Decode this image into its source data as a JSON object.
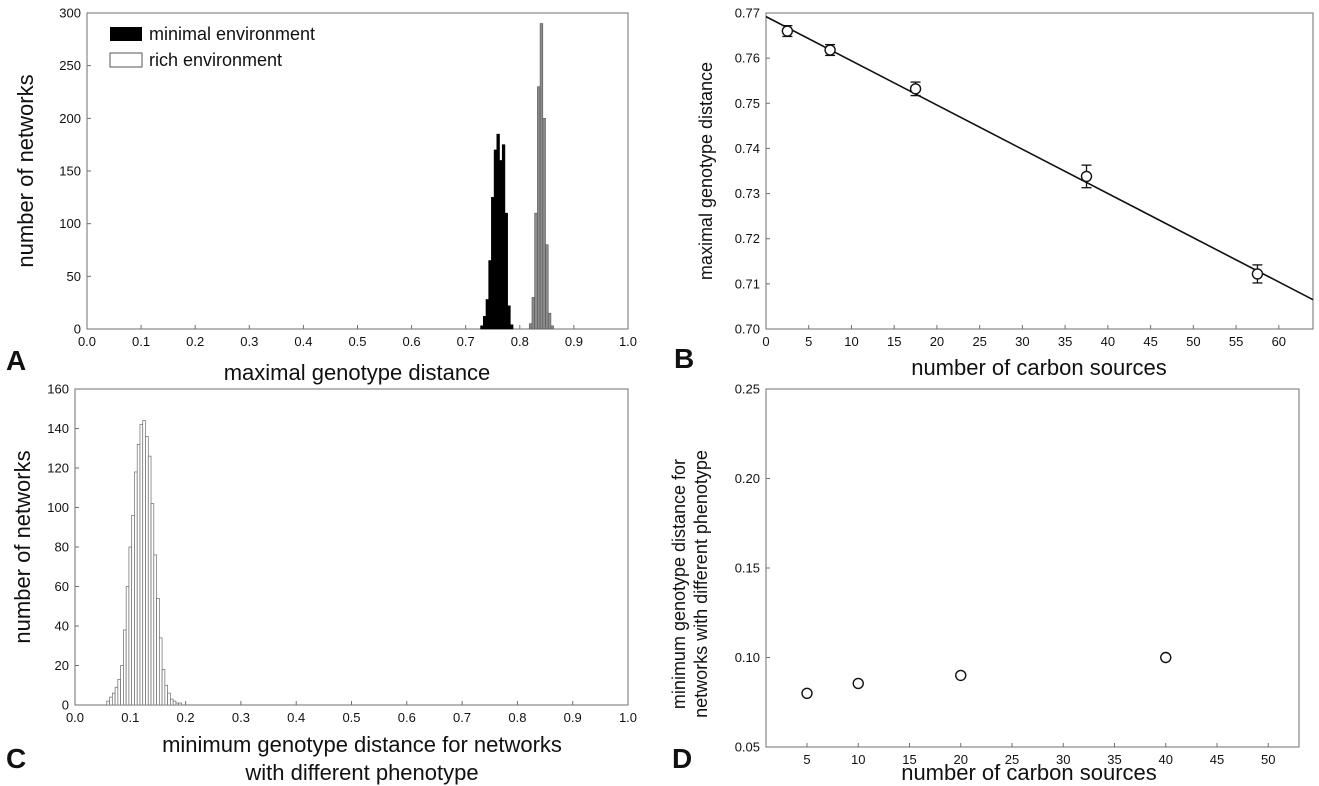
{
  "chart_data": [
    {
      "panel_label": "A",
      "type": "bar",
      "xlabel": "maximal genotype distance",
      "ylabel": "number of networks",
      "xlim": [
        0,
        1
      ],
      "ylim": [
        0,
        300
      ],
      "xticks": [
        "0.0",
        "0.1",
        "0.2",
        "0.3",
        "0.4",
        "0.5",
        "0.6",
        "0.7",
        "0.8",
        "0.9",
        "1.0"
      ],
      "yticks": [
        "0",
        "50",
        "100",
        "150",
        "200",
        "250",
        "300"
      ],
      "legend": {
        "placement": "top-left",
        "entries": [
          "minimal environment",
          "rich environment"
        ]
      },
      "grid": false,
      "bin_width": 0.005,
      "series": [
        {
          "name": "minimal environment",
          "color": "#000000",
          "x": [
            0.73,
            0.735,
            0.74,
            0.745,
            0.75,
            0.755,
            0.76,
            0.765,
            0.77,
            0.775,
            0.78,
            0.785
          ],
          "values": [
            3,
            12,
            28,
            65,
            125,
            170,
            185,
            160,
            175,
            110,
            22,
            4
          ]
        },
        {
          "name": "rich environment",
          "color": "#8c8c8c",
          "x": [
            0.82,
            0.825,
            0.83,
            0.835,
            0.84,
            0.845,
            0.85,
            0.855,
            0.86
          ],
          "values": [
            5,
            30,
            110,
            230,
            290,
            200,
            80,
            15,
            3
          ]
        }
      ]
    },
    {
      "panel_label": "B",
      "type": "scatter",
      "xlabel": "number of carbon sources",
      "ylabel": "maximal genotype distance",
      "xlim": [
        0,
        64
      ],
      "ylim": [
        0.7,
        0.77
      ],
      "xticks": [
        "0",
        "5",
        "10",
        "15",
        "20",
        "25",
        "30",
        "35",
        "40",
        "45",
        "50",
        "55",
        "60"
      ],
      "yticks": [
        "0.70",
        "0.71",
        "0.72",
        "0.73",
        "0.74",
        "0.75",
        "0.76",
        "0.77"
      ],
      "grid": false,
      "points": {
        "x": [
          2.5,
          7.5,
          17.5,
          37.5,
          57.5
        ],
        "y": [
          0.766,
          0.7618,
          0.7532,
          0.7338,
          0.7122
        ],
        "err": [
          0.0012,
          0.0012,
          0.0015,
          0.0025,
          0.002
        ]
      },
      "fit_line": {
        "x": [
          0,
          64
        ],
        "y": [
          0.7692,
          0.7065
        ]
      }
    },
    {
      "panel_label": "C",
      "type": "bar",
      "xlabel": "minimum genotype distance for networks",
      "xlabel_line2": "with different phenotype",
      "ylabel": "number of networks",
      "xlim": [
        0,
        1
      ],
      "ylim": [
        0,
        160
      ],
      "xticks": [
        "0.0",
        "0.1",
        "0.2",
        "0.3",
        "0.4",
        "0.5",
        "0.6",
        "0.7",
        "0.8",
        "0.9",
        "1.0"
      ],
      "yticks": [
        "0",
        "20",
        "40",
        "60",
        "80",
        "100",
        "120",
        "140",
        "160"
      ],
      "grid": false,
      "bin_width": 0.005,
      "x": [
        0.06,
        0.065,
        0.07,
        0.075,
        0.08,
        0.085,
        0.09,
        0.095,
        0.1,
        0.105,
        0.11,
        0.115,
        0.12,
        0.125,
        0.13,
        0.135,
        0.14,
        0.145,
        0.15,
        0.155,
        0.16,
        0.165,
        0.17,
        0.175,
        0.18,
        0.185,
        0.19
      ],
      "values": [
        2,
        4,
        6,
        9,
        13,
        20,
        38,
        60,
        80,
        96,
        118,
        132,
        142,
        144,
        136,
        126,
        102,
        76,
        54,
        34,
        18,
        10,
        6,
        3,
        2,
        1,
        1
      ]
    },
    {
      "panel_label": "D",
      "type": "scatter",
      "xlabel": "number of carbon sources",
      "ylabel": "minimum genotype distance for",
      "ylabel_line2": "networks with different phenotype",
      "xlim": [
        1,
        53
      ],
      "ylim": [
        0.05,
        0.25
      ],
      "xticks": [
        "5",
        "10",
        "15",
        "20",
        "25",
        "30",
        "35",
        "40",
        "45",
        "50"
      ],
      "yticks": [
        "0.05",
        "0.10",
        "0.15",
        "0.20",
        "0.25"
      ],
      "grid": false,
      "points": {
        "x": [
          5,
          10,
          20,
          40
        ],
        "y": [
          0.08,
          0.0855,
          0.09,
          0.1
        ]
      }
    }
  ]
}
